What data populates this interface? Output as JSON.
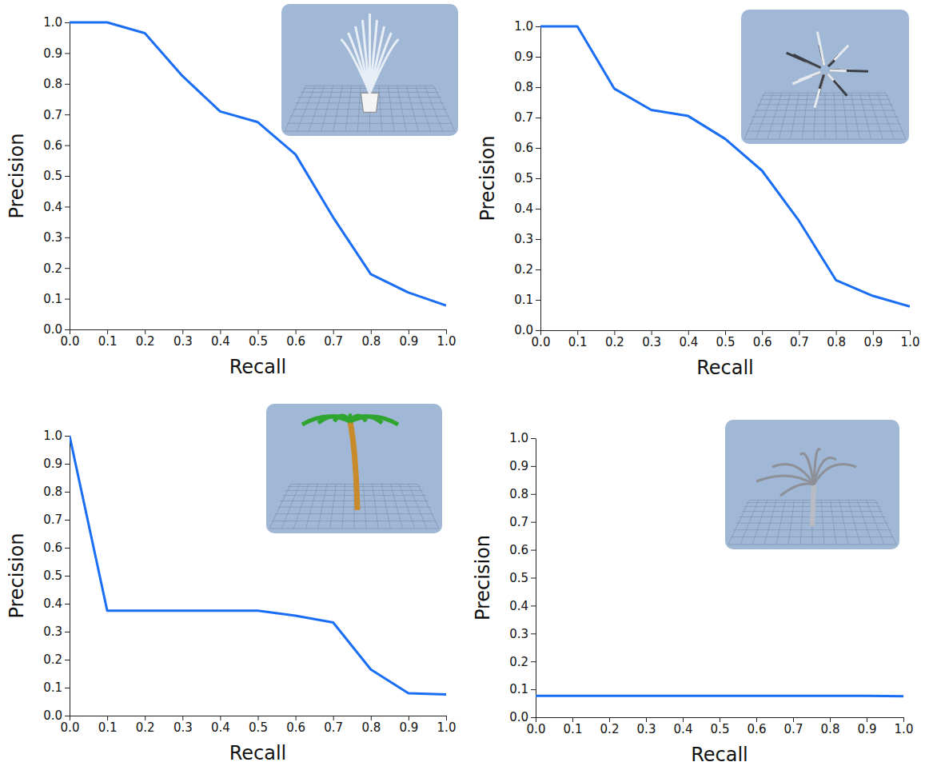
{
  "chart_data": [
    {
      "type": "line",
      "xlabel": "Recall",
      "ylabel": "Precision",
      "color": "#1a6ef5",
      "x": [
        0,
        0.1,
        0.2,
        0.3,
        0.4,
        0.5,
        0.6,
        0.7,
        0.8,
        0.9,
        1
      ],
      "values": [
        1.0,
        1.0,
        0.965,
        0.825,
        0.71,
        0.675,
        0.57,
        0.365,
        0.18,
        0.12,
        0.078
      ],
      "xlim": [
        0,
        1
      ],
      "ylim": [
        0,
        1
      ],
      "xticks": [
        {
          "value": 0,
          "label": "0.0"
        },
        0.1,
        0.2,
        0.3,
        0.4,
        0.5,
        0.6,
        0.7,
        0.8,
        0.9,
        {
          "value": 1,
          "label": "1.0"
        }
      ],
      "yticks": [
        {
          "value": 0,
          "label": "0.0"
        },
        0.1,
        0.2,
        0.3,
        0.4,
        0.5,
        0.6,
        0.7,
        0.8,
        0.9,
        {
          "value": 1,
          "label": "1.0"
        }
      ]
    },
    {
      "type": "line",
      "xlabel": "Recall",
      "ylabel": "Precision",
      "color": "#1a6ef5",
      "x": [
        0,
        0.1,
        0.2,
        0.3,
        0.4,
        0.5,
        0.6,
        0.7,
        0.8,
        0.9,
        1
      ],
      "values": [
        1.0,
        1.0,
        0.795,
        0.725,
        0.705,
        0.63,
        0.525,
        0.36,
        0.165,
        0.113,
        0.078
      ],
      "xlim": [
        0,
        1
      ],
      "ylim": [
        0,
        1
      ],
      "xticks": [
        {
          "value": 0,
          "label": "0.0"
        },
        0.1,
        0.2,
        0.3,
        0.4,
        0.5,
        0.6,
        0.7,
        0.8,
        0.9,
        {
          "value": 1,
          "label": "1.0"
        }
      ],
      "yticks": [
        {
          "value": 0,
          "label": "0.0"
        },
        0.1,
        0.2,
        0.3,
        0.4,
        0.5,
        0.6,
        0.7,
        0.8,
        0.9,
        {
          "value": 1,
          "label": "1.0"
        }
      ]
    },
    {
      "type": "line",
      "xlabel": "Recall",
      "ylabel": "Precision",
      "color": "#1a6ef5",
      "x": [
        0,
        0.1,
        0.2,
        0.3,
        0.4,
        0.5,
        0.6,
        0.7,
        0.8,
        0.9,
        1
      ],
      "values": [
        1.0,
        0.375,
        0.375,
        0.375,
        0.375,
        0.375,
        0.357,
        0.333,
        0.165,
        0.08,
        0.076
      ],
      "xlim": [
        0,
        1
      ],
      "ylim": [
        0,
        1
      ],
      "xticks": [
        {
          "value": 0,
          "label": "0.0"
        },
        0.1,
        0.2,
        0.3,
        0.4,
        0.5,
        0.6,
        0.7,
        0.8,
        0.9,
        {
          "value": 1,
          "label": "1.0"
        }
      ],
      "yticks": [
        {
          "value": 0,
          "label": "0.0"
        },
        0.1,
        0.2,
        0.3,
        0.4,
        0.5,
        0.6,
        0.7,
        0.8,
        0.9,
        {
          "value": 1,
          "label": "1.0"
        }
      ]
    },
    {
      "type": "line",
      "xlabel": "Recall",
      "ylabel": "Precision",
      "color": "#1a6ef5",
      "x": [
        0,
        0.1,
        0.2,
        0.3,
        0.4,
        0.5,
        0.6,
        0.7,
        0.8,
        0.9,
        1
      ],
      "values": [
        0.077,
        0.077,
        0.077,
        0.077,
        0.077,
        0.077,
        0.077,
        0.077,
        0.077,
        0.077,
        0.075
      ],
      "xlim": [
        0,
        1
      ],
      "ylim": [
        0,
        1
      ],
      "xticks": [
        {
          "value": 0,
          "label": "0.0"
        },
        0.1,
        0.2,
        0.3,
        0.4,
        0.5,
        0.6,
        0.7,
        0.8,
        0.9,
        {
          "value": 1,
          "label": "1.0"
        }
      ],
      "yticks": [
        {
          "value": 0,
          "label": "0.0"
        },
        0.1,
        0.2,
        0.3,
        0.4,
        0.5,
        0.6,
        0.7,
        0.8,
        0.9,
        {
          "value": 1,
          "label": "1.0"
        }
      ]
    }
  ]
}
